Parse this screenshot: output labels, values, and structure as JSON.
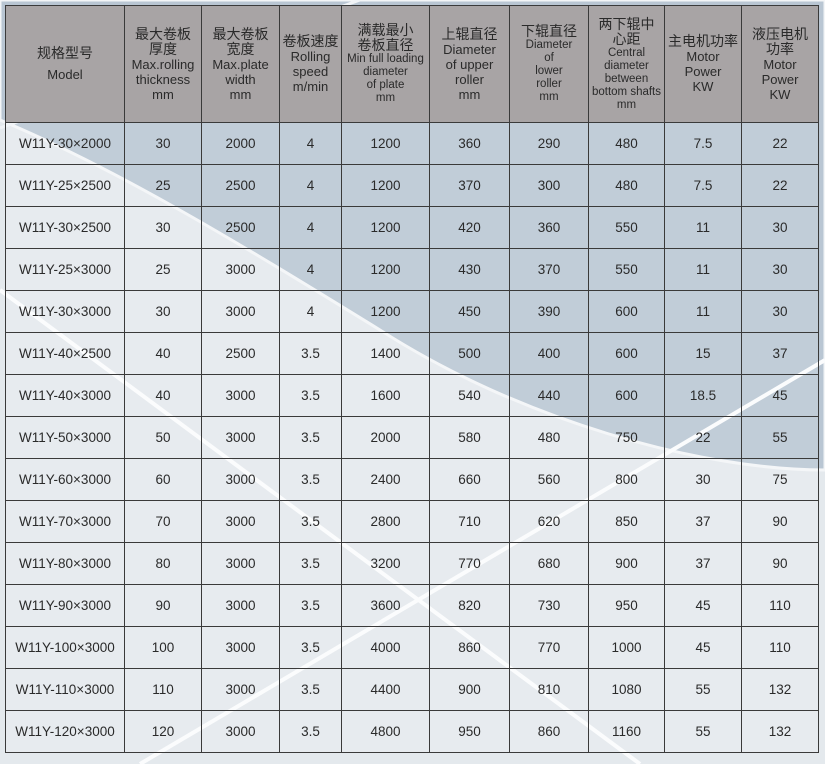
{
  "headers": [
    {
      "zh": "规格型号",
      "en": [
        "Model"
      ]
    },
    {
      "zh": "最大卷板厚度",
      "en": [
        "Max.rolling",
        "thickness",
        "mm"
      ]
    },
    {
      "zh": "最大卷板宽度",
      "en": [
        "Max.plate",
        "width",
        "mm"
      ]
    },
    {
      "zh": "卷板速度",
      "en": [
        "Rolling",
        "speed",
        "m/min"
      ]
    },
    {
      "zh": "满载最小卷板直径",
      "en": [
        "Min full loading",
        "diameter",
        "of plate",
        "mm"
      ]
    },
    {
      "zh": "上辊直径",
      "en": [
        "Diameter",
        "of upper",
        "roller",
        "mm"
      ]
    },
    {
      "zh": "下辊直径",
      "en": [
        "Diameter",
        "of",
        "lower",
        "roller",
        "mm"
      ]
    },
    {
      "zh": "两下辊中心距",
      "en": [
        "Central",
        "diameter",
        "between",
        "bottom shafts",
        "mm"
      ]
    },
    {
      "zh": "主电机功率",
      "en": [
        "Motor",
        "Power",
        "KW"
      ]
    },
    {
      "zh": "液压电机功率",
      "en": [
        "Motor",
        "Power",
        "KW"
      ]
    }
  ],
  "rows": [
    [
      "W11Y-30×2000",
      "30",
      "2000",
      "4",
      "1200",
      "360",
      "290",
      "480",
      "7.5",
      "22"
    ],
    [
      "W11Y-25×2500",
      "25",
      "2500",
      "4",
      "1200",
      "370",
      "300",
      "480",
      "7.5",
      "22"
    ],
    [
      "W11Y-30×2500",
      "30",
      "2500",
      "4",
      "1200",
      "420",
      "360",
      "550",
      "11",
      "30"
    ],
    [
      "W11Y-25×3000",
      "25",
      "3000",
      "4",
      "1200",
      "430",
      "370",
      "550",
      "11",
      "30"
    ],
    [
      "W11Y-30×3000",
      "30",
      "3000",
      "4",
      "1200",
      "450",
      "390",
      "600",
      "11",
      "30"
    ],
    [
      "W11Y-40×2500",
      "40",
      "2500",
      "3.5",
      "1400",
      "500",
      "400",
      "600",
      "15",
      "37"
    ],
    [
      "W11Y-40×3000",
      "40",
      "3000",
      "3.5",
      "1600",
      "540",
      "440",
      "600",
      "18.5",
      "45"
    ],
    [
      "W11Y-50×3000",
      "50",
      "3000",
      "3.5",
      "2000",
      "580",
      "480",
      "750",
      "22",
      "55"
    ],
    [
      "W11Y-60×3000",
      "60",
      "3000",
      "3.5",
      "2400",
      "660",
      "560",
      "800",
      "30",
      "75"
    ],
    [
      "W11Y-70×3000",
      "70",
      "3000",
      "3.5",
      "2800",
      "710",
      "620",
      "850",
      "37",
      "90"
    ],
    [
      "W11Y-80×3000",
      "80",
      "3000",
      "3.5",
      "3200",
      "770",
      "680",
      "900",
      "37",
      "90"
    ],
    [
      "W11Y-90×3000",
      "90",
      "3000",
      "3.5",
      "3600",
      "820",
      "730",
      "950",
      "45",
      "110"
    ],
    [
      "W11Y-100×3000",
      "100",
      "3000",
      "3.5",
      "4000",
      "860",
      "770",
      "1000",
      "45",
      "110"
    ],
    [
      "W11Y-110×3000",
      "110",
      "3000",
      "3.5",
      "4400",
      "900",
      "810",
      "1080",
      "55",
      "132"
    ],
    [
      "W11Y-120×3000",
      "120",
      "3000",
      "3.5",
      "4800",
      "950",
      "860",
      "1160",
      "55",
      "132"
    ]
  ],
  "colors": {
    "header_bg": "#a8a4a5",
    "arc": "#b9c6d3",
    "background": "#e4e9ed"
  }
}
